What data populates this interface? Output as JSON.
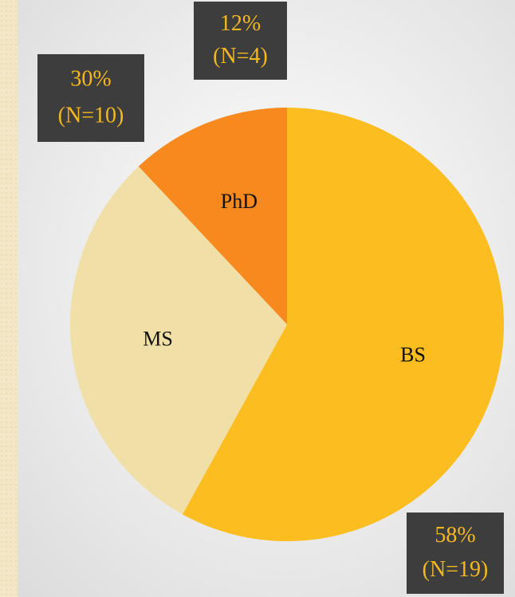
{
  "chart_data": {
    "type": "pie",
    "categories": [
      "BS",
      "MS",
      "PhD"
    ],
    "values": [
      58,
      30,
      12
    ],
    "value_labels": [
      "58%",
      "30%",
      "12%"
    ],
    "count_labels": [
      "(N=19)",
      "(N=10)",
      "(N=4)"
    ],
    "colors": [
      "#fbbd1f",
      "#f0e0a8",
      "#f7891f"
    ],
    "start_angle": 0,
    "direction": "clockwise"
  }
}
